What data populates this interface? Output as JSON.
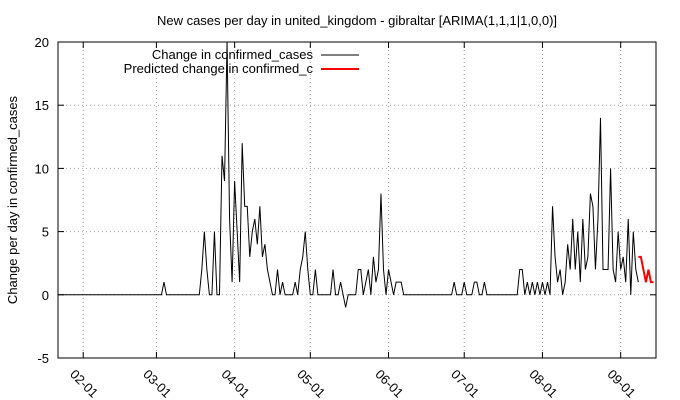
{
  "chart_data": {
    "type": "line",
    "title": "New cases per day in united_kingdom - gibraltar [ARIMA(1,1,1|1,0,0)]",
    "xlabel": "",
    "ylabel": "Change per day in confirmed_cases",
    "ylim": [
      -5,
      20
    ],
    "yticks": [
      -5,
      0,
      5,
      10,
      15,
      20
    ],
    "xlim": [
      "2020-01-22",
      "2020-09-15"
    ],
    "xticks": [
      "2020-02-01",
      "2020-03-01",
      "2020-04-01",
      "2020-05-01",
      "2020-06-01",
      "2020-07-01",
      "2020-08-01",
      "2020-09-01"
    ],
    "xtick_labels": [
      "02-01",
      "03-01",
      "04-01",
      "05-01",
      "06-01",
      "07-01",
      "08-01",
      "09-01"
    ],
    "grid": true,
    "legend_position": "top-left",
    "series": [
      {
        "name": "Change in confirmed_cases",
        "color": "#000000",
        "points": [
          [
            "2020-01-22",
            0
          ],
          [
            "2020-02-28",
            0
          ],
          [
            "2020-03-03",
            0
          ],
          [
            "2020-03-04",
            1
          ],
          [
            "2020-03-05",
            0
          ],
          [
            "2020-03-18",
            0
          ],
          [
            "2020-03-19",
            2
          ],
          [
            "2020-03-20",
            5
          ],
          [
            "2020-03-21",
            2
          ],
          [
            "2020-03-22",
            0
          ],
          [
            "2020-03-23",
            0
          ],
          [
            "2020-03-24",
            5
          ],
          [
            "2020-03-25",
            0
          ],
          [
            "2020-03-26",
            0
          ],
          [
            "2020-03-27",
            11
          ],
          [
            "2020-03-28",
            9
          ],
          [
            "2020-03-29",
            20
          ],
          [
            "2020-03-30",
            6
          ],
          [
            "2020-03-31",
            1
          ],
          [
            "2020-04-01",
            9
          ],
          [
            "2020-04-02",
            5
          ],
          [
            "2020-04-03",
            1
          ],
          [
            "2020-04-04",
            12
          ],
          [
            "2020-04-05",
            7
          ],
          [
            "2020-04-06",
            7
          ],
          [
            "2020-04-07",
            3
          ],
          [
            "2020-04-08",
            5
          ],
          [
            "2020-04-09",
            6
          ],
          [
            "2020-04-10",
            4
          ],
          [
            "2020-04-11",
            7
          ],
          [
            "2020-04-12",
            3
          ],
          [
            "2020-04-13",
            4
          ],
          [
            "2020-04-14",
            2
          ],
          [
            "2020-04-15",
            1
          ],
          [
            "2020-04-16",
            0
          ],
          [
            "2020-04-17",
            0
          ],
          [
            "2020-04-18",
            2
          ],
          [
            "2020-04-19",
            0
          ],
          [
            "2020-04-20",
            1
          ],
          [
            "2020-04-21",
            0
          ],
          [
            "2020-04-24",
            0
          ],
          [
            "2020-04-25",
            1
          ],
          [
            "2020-04-26",
            0
          ],
          [
            "2020-04-27",
            2
          ],
          [
            "2020-04-28",
            3
          ],
          [
            "2020-04-29",
            5
          ],
          [
            "2020-04-30",
            2
          ],
          [
            "2020-05-01",
            0
          ],
          [
            "2020-05-02",
            0
          ],
          [
            "2020-05-03",
            2
          ],
          [
            "2020-05-04",
            0
          ],
          [
            "2020-05-09",
            0
          ],
          [
            "2020-05-10",
            2
          ],
          [
            "2020-05-11",
            0
          ],
          [
            "2020-05-12",
            0
          ],
          [
            "2020-05-13",
            1
          ],
          [
            "2020-05-14",
            0
          ],
          [
            "2020-05-15",
            -1
          ],
          [
            "2020-05-16",
            0
          ],
          [
            "2020-05-19",
            0
          ],
          [
            "2020-05-20",
            2
          ],
          [
            "2020-05-21",
            2
          ],
          [
            "2020-05-22",
            0
          ],
          [
            "2020-05-23",
            1
          ],
          [
            "2020-05-24",
            2
          ],
          [
            "2020-05-25",
            0
          ],
          [
            "2020-05-26",
            3
          ],
          [
            "2020-05-27",
            1
          ],
          [
            "2020-05-28",
            2
          ],
          [
            "2020-05-29",
            8
          ],
          [
            "2020-05-30",
            2
          ],
          [
            "2020-05-31",
            0
          ],
          [
            "2020-06-01",
            2
          ],
          [
            "2020-06-02",
            1
          ],
          [
            "2020-06-03",
            0
          ],
          [
            "2020-06-04",
            1
          ],
          [
            "2020-06-05",
            1
          ],
          [
            "2020-06-06",
            1
          ],
          [
            "2020-06-07",
            0
          ],
          [
            "2020-06-26",
            0
          ],
          [
            "2020-06-27",
            1
          ],
          [
            "2020-06-28",
            0
          ],
          [
            "2020-06-30",
            0
          ],
          [
            "2020-07-01",
            1
          ],
          [
            "2020-07-02",
            0
          ],
          [
            "2020-07-04",
            0
          ],
          [
            "2020-07-05",
            1
          ],
          [
            "2020-07-06",
            1
          ],
          [
            "2020-07-07",
            0
          ],
          [
            "2020-07-08",
            0
          ],
          [
            "2020-07-09",
            1
          ],
          [
            "2020-07-10",
            0
          ],
          [
            "2020-07-22",
            0
          ],
          [
            "2020-07-23",
            2
          ],
          [
            "2020-07-24",
            2
          ],
          [
            "2020-07-25",
            0
          ],
          [
            "2020-07-26",
            1
          ],
          [
            "2020-07-27",
            0
          ],
          [
            "2020-07-28",
            1
          ],
          [
            "2020-07-29",
            0
          ],
          [
            "2020-07-30",
            1
          ],
          [
            "2020-07-31",
            0
          ],
          [
            "2020-08-01",
            1
          ],
          [
            "2020-08-02",
            0
          ],
          [
            "2020-08-03",
            1
          ],
          [
            "2020-08-04",
            0
          ],
          [
            "2020-08-05",
            7
          ],
          [
            "2020-08-06",
            3
          ],
          [
            "2020-08-07",
            1
          ],
          [
            "2020-08-08",
            2
          ],
          [
            "2020-08-09",
            0
          ],
          [
            "2020-08-10",
            1
          ],
          [
            "2020-08-11",
            4
          ],
          [
            "2020-08-12",
            2
          ],
          [
            "2020-08-13",
            6
          ],
          [
            "2020-08-14",
            2
          ],
          [
            "2020-08-15",
            5
          ],
          [
            "2020-08-16",
            1
          ],
          [
            "2020-08-17",
            6
          ],
          [
            "2020-08-18",
            2
          ],
          [
            "2020-08-19",
            3
          ],
          [
            "2020-08-20",
            8
          ],
          [
            "2020-08-21",
            7
          ],
          [
            "2020-08-22",
            2
          ],
          [
            "2020-08-23",
            6
          ],
          [
            "2020-08-24",
            14
          ],
          [
            "2020-08-25",
            2
          ],
          [
            "2020-08-26",
            2
          ],
          [
            "2020-08-27",
            2
          ],
          [
            "2020-08-28",
            10
          ],
          [
            "2020-08-29",
            2
          ],
          [
            "2020-08-30",
            1
          ],
          [
            "2020-08-31",
            5
          ],
          [
            "2020-09-01",
            2
          ],
          [
            "2020-09-02",
            3
          ],
          [
            "2020-09-03",
            1
          ],
          [
            "2020-09-04",
            6
          ],
          [
            "2020-09-05",
            0
          ],
          [
            "2020-09-06",
            5
          ],
          [
            "2020-09-07",
            2
          ],
          [
            "2020-09-08",
            1
          ]
        ]
      },
      {
        "name": "Predicted change in confirmed_c",
        "color": "#ff0000",
        "points": [
          [
            "2020-09-08",
            3
          ],
          [
            "2020-09-09",
            3
          ],
          [
            "2020-09-10",
            2
          ],
          [
            "2020-09-11",
            1
          ],
          [
            "2020-09-12",
            2
          ],
          [
            "2020-09-13",
            1
          ],
          [
            "2020-09-14",
            1
          ]
        ]
      }
    ]
  }
}
